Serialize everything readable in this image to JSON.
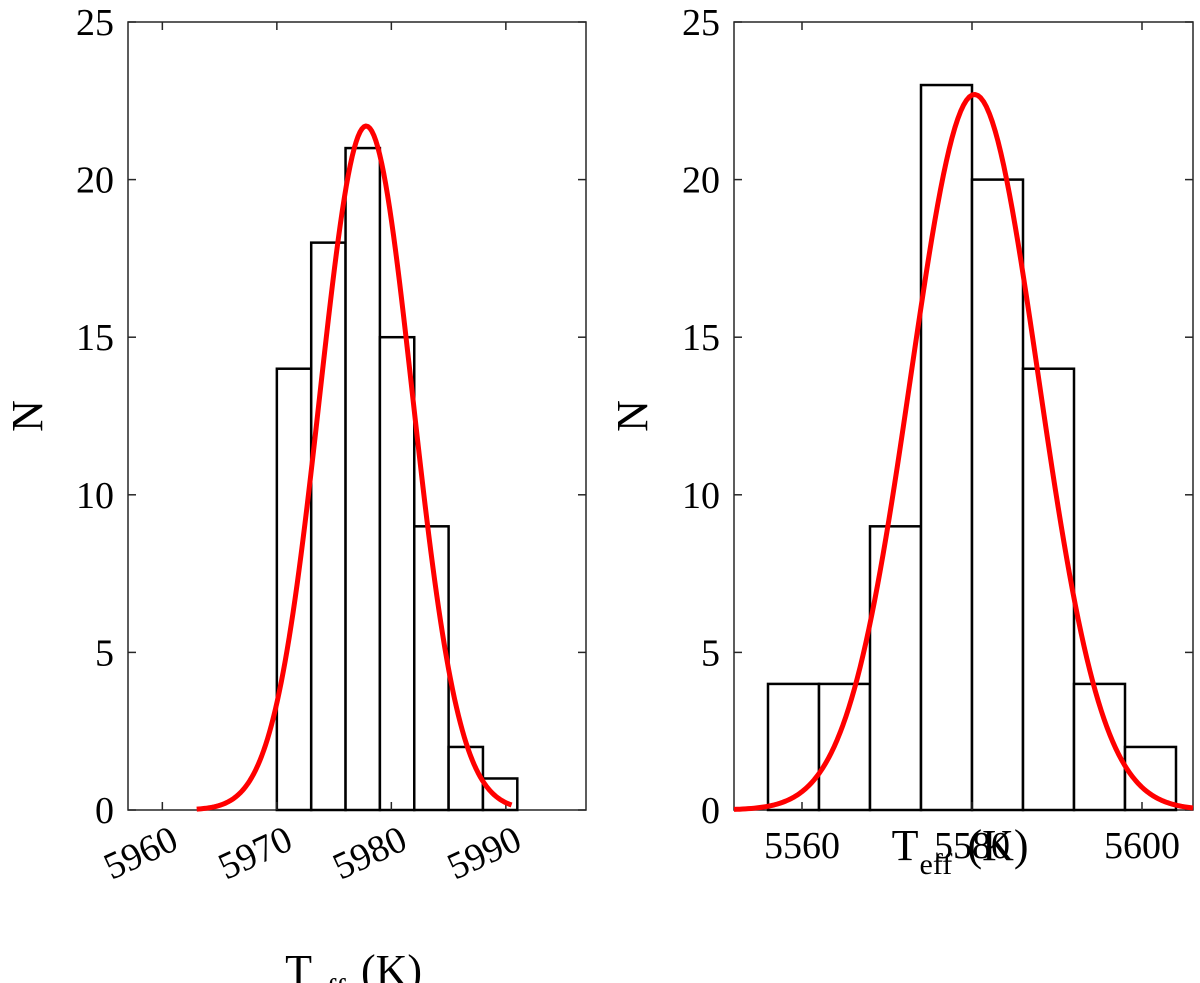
{
  "chart_data": [
    {
      "type": "bar",
      "ylabel": "N",
      "xlabel": "T",
      "xlabel_sub": "eff",
      "xlabel_unit": "(K)",
      "xlim": [
        5957,
        5997
      ],
      "ylim": [
        0,
        25
      ],
      "xticks": [
        5960,
        5970,
        5980,
        5990
      ],
      "xtick_labels": [
        "5960",
        "5970",
        "5980",
        "5990"
      ],
      "yticks": [
        0,
        5,
        10,
        15,
        20,
        25
      ],
      "ytick_labels": [
        "0",
        "5",
        "10",
        "15",
        "20",
        "25"
      ],
      "bins": [
        {
          "x0": 5970.0,
          "x1": 5973.0,
          "count": 14
        },
        {
          "x0": 5973.0,
          "x1": 5976.0,
          "count": 18
        },
        {
          "x0": 5976.0,
          "x1": 5979.0,
          "count": 21
        },
        {
          "x0": 5979.0,
          "x1": 5982.0,
          "count": 15
        },
        {
          "x0": 5982.0,
          "x1": 5985.0,
          "count": 9
        },
        {
          "x0": 5985.0,
          "x1": 5988.0,
          "count": 2
        },
        {
          "x0": 5988.0,
          "x1": 5991.0,
          "count": 1
        }
      ],
      "fit": {
        "type": "gaussian",
        "amplitude": 21.7,
        "mean": 5977.8,
        "sigma": 4.05,
        "x_start": 5963.0,
        "x_end": 5990.5,
        "color": "#ff0000"
      }
    },
    {
      "type": "bar",
      "ylabel": "N",
      "xlabel": "T",
      "xlabel_sub": "eff",
      "xlabel_unit": "(K)",
      "xlim": [
        5552,
        5606
      ],
      "ylim": [
        0,
        25
      ],
      "xticks": [
        5560,
        5580,
        5600
      ],
      "xtick_labels": [
        "5560",
        "5580",
        "5600"
      ],
      "yticks": [
        0,
        5,
        10,
        15,
        20,
        25
      ],
      "ytick_labels": [
        "0",
        "5",
        "10",
        "15",
        "20",
        "25"
      ],
      "bins": [
        {
          "x0": 5556.0,
          "x1": 5562.0,
          "count": 4
        },
        {
          "x0": 5562.0,
          "x1": 5568.0,
          "count": 4
        },
        {
          "x0": 5568.0,
          "x1": 5574.0,
          "count": 9
        },
        {
          "x0": 5574.0,
          "x1": 5580.0,
          "count": 23
        },
        {
          "x0": 5580.0,
          "x1": 5586.0,
          "count": 20
        },
        {
          "x0": 5586.0,
          "x1": 5592.0,
          "count": 14
        },
        {
          "x0": 5592.0,
          "x1": 5598.0,
          "count": 4
        },
        {
          "x0": 5598.0,
          "x1": 5604.0,
          "count": 2
        }
      ],
      "fit": {
        "type": "gaussian",
        "amplitude": 22.7,
        "mean": 5580.3,
        "sigma": 7.5,
        "x_start": 5552.0,
        "x_end": 5606.0,
        "color": "#ff0000"
      }
    }
  ]
}
